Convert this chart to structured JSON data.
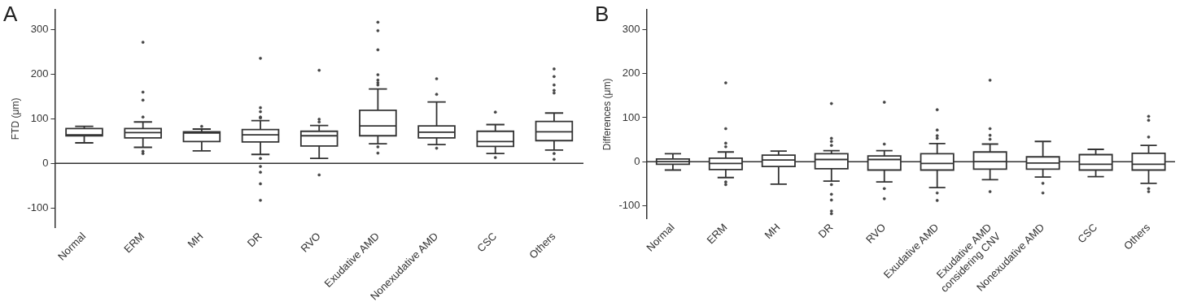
{
  "chart_data": [
    {
      "type": "box",
      "title": "A",
      "ylabel": "FTD (μm)",
      "categories": [
        "Normal",
        "ERM",
        "MH",
        "DR",
        "RVO",
        "Exudative AMD",
        "Nonexudative AMD",
        "CSC",
        "Others"
      ],
      "ylim": [
        -145,
        345
      ],
      "yticks": [
        -100,
        0,
        100,
        200,
        300
      ],
      "grid": false,
      "color": "#333333",
      "ref_lines": [
        {
          "axis": "y",
          "value": 0
        }
      ],
      "boxes": [
        {
          "low": 46,
          "q1": 62,
          "median": 64,
          "q3": 78,
          "high": 83
        },
        {
          "low": 36,
          "q1": 57,
          "median": 69,
          "q3": 78,
          "high": 93,
          "outliers": [
            272,
            160,
            142,
            104,
            27,
            22
          ]
        },
        {
          "low": 28,
          "q1": 49,
          "median": 68,
          "q3": 71,
          "high": 77,
          "outliers": [
            83
          ]
        },
        {
          "low": 20,
          "q1": 48,
          "median": 64,
          "q3": 76,
          "high": 96,
          "outliers": [
            236,
            125,
            116,
            104,
            102,
            11,
            -7,
            -20,
            -46,
            -83
          ]
        },
        {
          "low": 11,
          "q1": 39,
          "median": 62,
          "q3": 72,
          "high": 85,
          "outliers": [
            209,
            99,
            93,
            -26
          ]
        },
        {
          "low": 44,
          "q1": 62,
          "median": 84,
          "q3": 119,
          "high": 167,
          "outliers": [
            317,
            298,
            255,
            199,
            187,
            181,
            176,
            37,
            23
          ]
        },
        {
          "low": 42,
          "q1": 57,
          "median": 70,
          "q3": 84,
          "high": 138,
          "outliers": [
            190,
            155,
            34
          ]
        },
        {
          "low": 22,
          "q1": 38,
          "median": 49,
          "q3": 72,
          "high": 87,
          "outliers": [
            115,
            13
          ]
        },
        {
          "low": 30,
          "q1": 51,
          "median": 71,
          "q3": 94,
          "high": 113,
          "outliers": [
            212,
            195,
            176,
            164,
            158,
            22,
            9
          ]
        }
      ]
    },
    {
      "type": "box",
      "title": "B",
      "ylabel": "Differences (μm)",
      "categories": [
        "Normal",
        "ERM",
        "MH",
        "DR",
        "RVO",
        "Exudative AMD",
        "Exudative AMD considering CNV",
        "Nonexudative AMD",
        "CSC",
        "Others"
      ],
      "ylim": [
        -130,
        345
      ],
      "yticks": [
        -100,
        0,
        100,
        200,
        300
      ],
      "grid": false,
      "color": "#333333",
      "ref_lines": [
        {
          "axis": "y",
          "value": 0
        }
      ],
      "boxes": [
        {
          "low": -19,
          "q1": -6,
          "median": 0,
          "q3": 6,
          "high": 18
        },
        {
          "low": -36,
          "q1": -18,
          "median": -4,
          "q3": 8,
          "high": 22,
          "outliers": [
            179,
            75,
            42,
            34,
            -46,
            -52
          ]
        },
        {
          "low": -51,
          "q1": -11,
          "median": 4,
          "q3": 15,
          "high": 24
        },
        {
          "low": -44,
          "q1": -16,
          "median": 5,
          "q3": 18,
          "high": 25,
          "outliers": [
            132,
            53,
            46,
            37,
            -52,
            -74,
            -87,
            -112,
            -118
          ]
        },
        {
          "low": -46,
          "q1": -19,
          "median": 5,
          "q3": 13,
          "high": 25,
          "outliers": [
            135,
            40,
            -61,
            -84
          ]
        },
        {
          "low": -59,
          "q1": -19,
          "median": -4,
          "q3": 18,
          "high": 41,
          "outliers": [
            118,
            72,
            59,
            53,
            -71,
            -88
          ]
        },
        {
          "low": -41,
          "q1": -17,
          "median": 0,
          "q3": 22,
          "high": 40,
          "outliers": [
            185,
            75,
            60,
            51,
            -68
          ]
        },
        {
          "low": -35,
          "q1": -17,
          "median": -3,
          "q3": 11,
          "high": 46,
          "outliers": [
            -49,
            -71
          ]
        },
        {
          "low": -34,
          "q1": -19,
          "median": -6,
          "q3": 16,
          "high": 28
        },
        {
          "low": -49,
          "q1": -19,
          "median": -6,
          "q3": 19,
          "high": 37,
          "outliers": [
            103,
            94,
            56,
            -61,
            -68
          ]
        }
      ]
    }
  ]
}
